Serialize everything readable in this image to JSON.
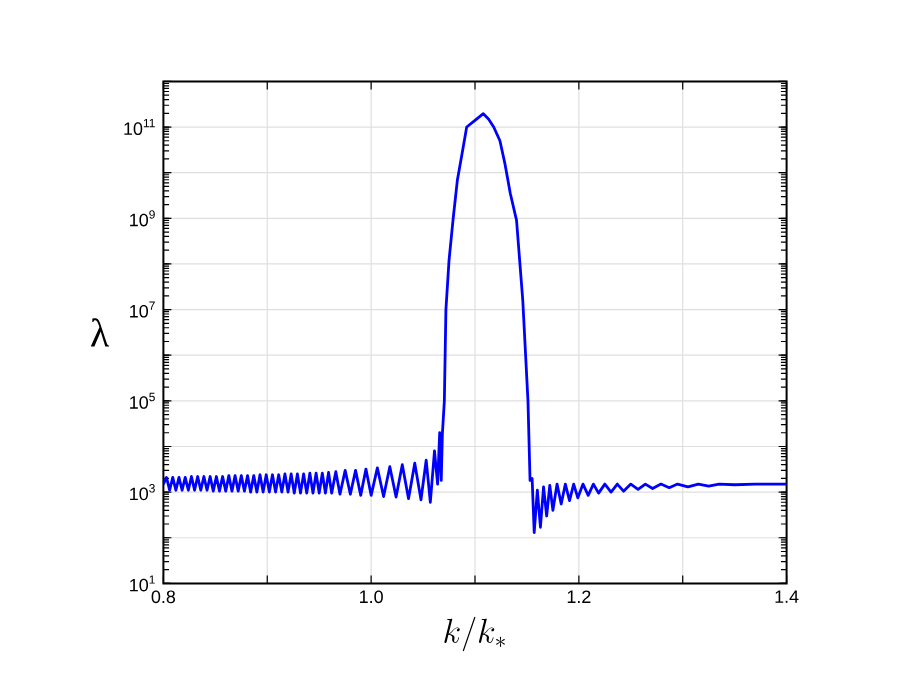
{
  "chart_data": {
    "type": "line",
    "xlabel": "k/k_*",
    "ylabel": "λ",
    "xlim": [
      0.8,
      1.4
    ],
    "ylim": [
      10,
      1000000000000.0
    ],
    "xticks": [
      {
        "value": 0.8,
        "label": "0.8"
      },
      {
        "value": 0.9,
        "label": null
      },
      {
        "value": 1.0,
        "label": "1.0"
      },
      {
        "value": 1.1,
        "label": null
      },
      {
        "value": 1.2,
        "label": "1.2"
      },
      {
        "value": 1.3,
        "label": null
      },
      {
        "value": 1.4,
        "label": "1.4"
      }
    ],
    "yticks": [
      {
        "value": 10,
        "label": "10$^{1}$"
      },
      {
        "value": 100,
        "label": null
      },
      {
        "value": 1000,
        "label": "10$^{3}$"
      },
      {
        "value": 10000,
        "label": null
      },
      {
        "value": 100000,
        "label": "10$^{5}$"
      },
      {
        "value": 1000000,
        "label": null
      },
      {
        "value": 10000000,
        "label": "10$^{7}$"
      },
      {
        "value": 100000000,
        "label": null
      },
      {
        "value": 1000000000,
        "label": "10$^{9}$"
      },
      {
        "value": 10000000000,
        "label": null
      },
      {
        "value": 100000000000,
        "label": "10$^{11}$"
      },
      {
        "value": 1000000000000,
        "label": null
      }
    ],
    "log": "y",
    "grid": true,
    "series": [
      {
        "color": "#0000ff",
        "x": [
          0.8,
          0.803,
          0.806,
          0.809,
          0.812,
          0.815,
          0.818,
          0.821,
          0.824,
          0.827,
          0.83,
          0.833,
          0.836,
          0.839,
          0.842,
          0.845,
          0.848,
          0.851,
          0.854,
          0.857,
          0.86,
          0.863,
          0.866,
          0.869,
          0.872,
          0.875,
          0.878,
          0.881,
          0.884,
          0.887,
          0.89,
          0.893,
          0.896,
          0.899,
          0.902,
          0.905,
          0.908,
          0.911,
          0.914,
          0.917,
          0.92,
          0.923,
          0.926,
          0.929,
          0.932,
          0.935,
          0.938,
          0.941,
          0.944,
          0.947,
          0.95,
          0.953,
          0.956,
          0.959,
          0.962,
          0.966,
          0.97,
          0.975,
          0.98,
          0.985,
          0.99,
          0.995,
          1.0,
          1.006,
          1.012,
          1.018,
          1.024,
          1.03,
          1.036,
          1.042,
          1.048,
          1.053,
          1.057,
          1.061,
          1.064,
          1.066,
          1.0675,
          1.0686,
          1.0705,
          1.072,
          1.075,
          1.079,
          1.083,
          1.088,
          1.092,
          1.1,
          1.108,
          1.113,
          1.118,
          1.124,
          1.129,
          1.134,
          1.14,
          1.146,
          1.151,
          1.153,
          1.155,
          1.157,
          1.16,
          1.163,
          1.166,
          1.169,
          1.172,
          1.175,
          1.179,
          1.183,
          1.187,
          1.191,
          1.195,
          1.199,
          1.204,
          1.209,
          1.214,
          1.219,
          1.225,
          1.231,
          1.237,
          1.243,
          1.25,
          1.257,
          1.264,
          1.271,
          1.279,
          1.287,
          1.295,
          1.305,
          1.315,
          1.325,
          1.335,
          1.35,
          1.37,
          1.4
        ],
        "values": [
          1500,
          2100,
          1100,
          2100,
          1100,
          2100,
          1100,
          2100,
          1100,
          2200,
          1100,
          2200,
          1100,
          2200,
          1100,
          2200,
          1050,
          2200,
          1050,
          2200,
          1050,
          2300,
          1050,
          2300,
          1050,
          2300,
          1050,
          2300,
          1000,
          2300,
          1000,
          2400,
          1000,
          2400,
          1000,
          2400,
          1000,
          2400,
          1000,
          2500,
          1000,
          2500,
          950,
          2500,
          950,
          2500,
          950,
          2600,
          950,
          2600,
          950,
          2600,
          950,
          2700,
          950,
          2800,
          900,
          3000,
          900,
          3000,
          850,
          3200,
          850,
          3400,
          800,
          3600,
          780,
          4000,
          720,
          4300,
          680,
          5000,
          600,
          8000,
          1500,
          20000,
          1800,
          19000,
          100000,
          10000000,
          120000000,
          1000000000,
          6800000000,
          30000000000,
          100000000000,
          140000000000,
          196000000000,
          150000000000,
          100000000000,
          50000000000,
          15000000000,
          3500000000,
          900000000,
          16000000,
          100000,
          1800,
          2000,
          130,
          1100,
          170,
          1300,
          300,
          1400,
          400,
          1500,
          550,
          1500,
          650,
          1500,
          750,
          1500,
          850,
          1500,
          950,
          1500,
          1000,
          1500,
          1050,
          1500,
          1150,
          1500,
          1200,
          1500,
          1250,
          1500,
          1300,
          1500,
          1350,
          1500,
          1450,
          1500,
          1500
        ]
      }
    ]
  }
}
